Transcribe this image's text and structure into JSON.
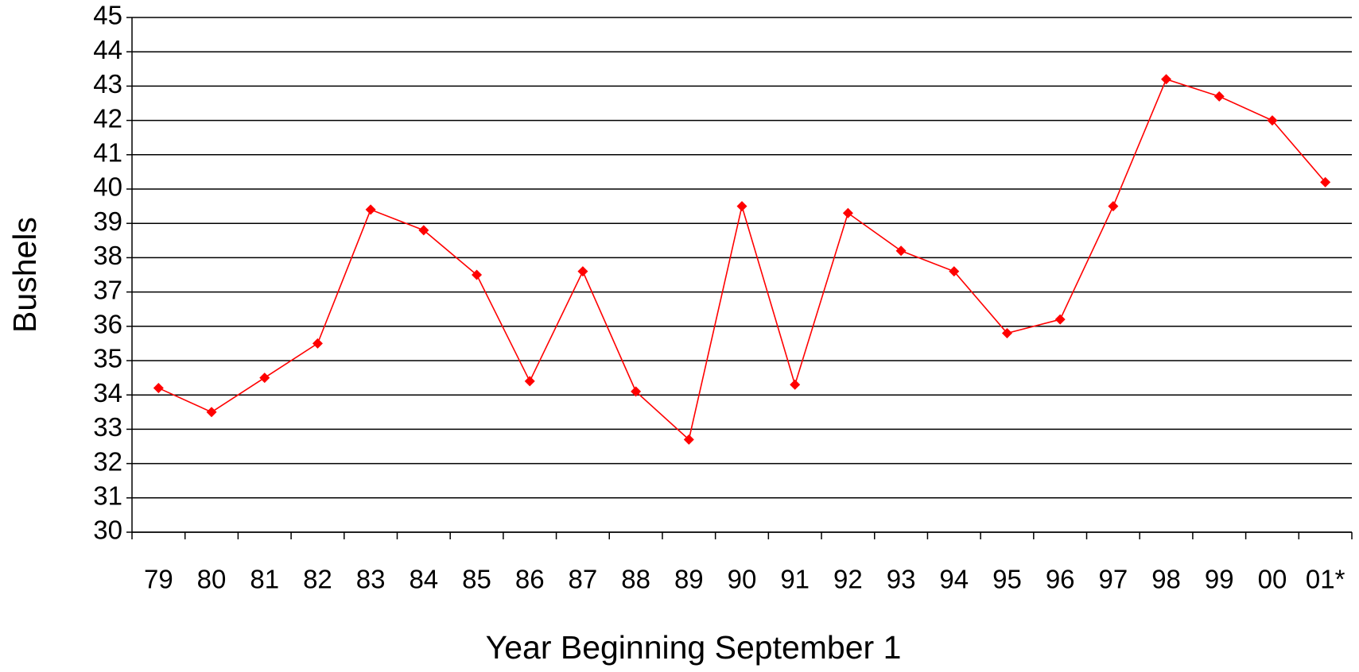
{
  "chart_data": {
    "type": "line",
    "x_label": "Year Beginning September 1",
    "y_label": "Bushels",
    "categories": [
      "79",
      "80",
      "81",
      "82",
      "83",
      "84",
      "85",
      "86",
      "87",
      "88",
      "89",
      "90",
      "91",
      "92",
      "93",
      "94",
      "95",
      "96",
      "97",
      "98",
      "99",
      "00",
      "01*"
    ],
    "series": [
      {
        "name": "Bushels",
        "color": "#ff0000",
        "values": [
          34.2,
          33.5,
          34.5,
          35.5,
          39.4,
          38.8,
          37.5,
          34.4,
          37.6,
          34.1,
          32.7,
          39.5,
          34.3,
          39.3,
          38.2,
          37.6,
          35.8,
          36.2,
          39.5,
          43.2,
          42.7,
          42.0,
          40.2
        ]
      }
    ],
    "ylim": [
      30,
      45
    ],
    "yticks": [
      30,
      31,
      32,
      33,
      34,
      35,
      36,
      37,
      38,
      39,
      40,
      41,
      42,
      43,
      44,
      45
    ],
    "grid": true
  }
}
